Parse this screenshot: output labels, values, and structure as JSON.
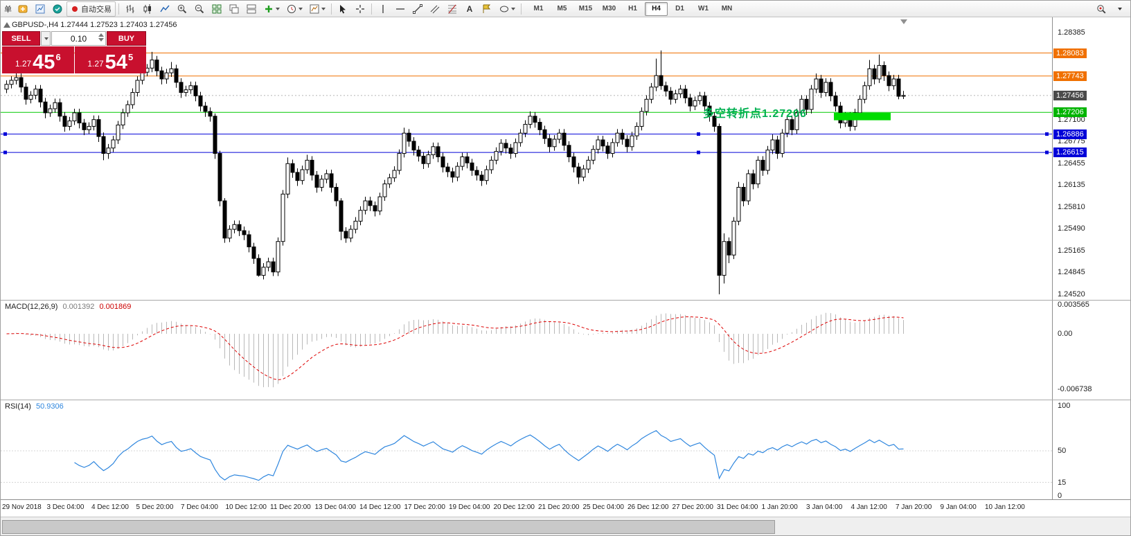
{
  "toolbar": {
    "order_label": "单",
    "autotrading_label": "自动交易",
    "icon_names": [
      "new-order",
      "charts",
      "market-watch",
      "autotrading",
      "bar-chart",
      "candlestick-chart",
      "line-chart",
      "zoom-in",
      "zoom-out",
      "tile-windows",
      "cascade-windows",
      "arrange-windows",
      "add-indicator",
      "periods",
      "templates",
      "cursor",
      "crosshair",
      "vertical-line",
      "horizontal-line",
      "trendline",
      "equidistant-channel",
      "fibonacci",
      "text",
      "label",
      "shapes",
      "search",
      "overflow-chevron"
    ],
    "timeframes": [
      "M1",
      "M5",
      "M15",
      "M30",
      "H1",
      "H4",
      "D1",
      "W1",
      "MN"
    ],
    "active_timeframe": "H4"
  },
  "chart_header": {
    "symbol_label": "GBPUSD-,H4 1.27444 1.27523 1.27403 1.27456"
  },
  "one_click": {
    "sell_label": "SELL",
    "buy_label": "BUY",
    "lot_size": "0.10",
    "sell_price_prefix": "1.27",
    "sell_price_big": "45",
    "sell_price_sup": "6",
    "buy_price_prefix": "1.27",
    "buy_price_big": "54",
    "buy_price_sup": "5",
    "button_color": "#c8102e"
  },
  "annotation": {
    "text": "多空转折点1.27206",
    "color": "#00b050"
  },
  "price_axis": {
    "plain_ticks": [
      {
        "label": "1.28385",
        "price": 1.28385
      },
      {
        "label": "1.27100",
        "price": 1.271
      },
      {
        "label": "1.26775",
        "price": 1.26775
      },
      {
        "label": "1.26455",
        "price": 1.26455
      },
      {
        "label": "1.26135",
        "price": 1.26135
      },
      {
        "label": "1.25810",
        "price": 1.2581
      },
      {
        "label": "1.25490",
        "price": 1.2549
      },
      {
        "label": "1.25165",
        "price": 1.25165
      },
      {
        "label": "1.24845",
        "price": 1.24845
      },
      {
        "label": "1.24520",
        "price": 1.2452
      }
    ],
    "badges": [
      {
        "label": "1.28083",
        "price": 1.28083,
        "color": "#f07000"
      },
      {
        "label": "1.27743",
        "price": 1.27743,
        "color": "#f07000"
      },
      {
        "label": "1.27456",
        "price": 1.27456,
        "color": "#4a4a4a"
      },
      {
        "label": "1.27206",
        "price": 1.27206,
        "color": "#00b400"
      },
      {
        "label": "1.26886",
        "price": 1.26886,
        "color": "#0000d8"
      },
      {
        "label": "1.26615",
        "price": 1.26615,
        "color": "#0000d8"
      }
    ]
  },
  "indicators": {
    "macd": {
      "name_label": "MACD(12,26,9)",
      "value_main": "0.001392",
      "value_signal": "0.001869",
      "axis_labels": [
        "0.003565",
        "0.00",
        "-0.006738"
      ],
      "params": {
        "fast": 12,
        "slow": 26,
        "signal": 9
      },
      "colors": {
        "histogram": "#b8b8b8",
        "signal": "#dd0000"
      }
    },
    "rsi": {
      "name_label": "RSI(14)",
      "value": "50.9306",
      "axis_labels": [
        "100",
        "50",
        "15",
        "0"
      ],
      "period": 14,
      "levels": [
        50,
        15
      ],
      "color": "#2e86de"
    }
  },
  "time_axis": {
    "labels": [
      "29 Nov 2018",
      "3 Dec 04:00",
      "4 Dec 12:00",
      "5 Dec 20:00",
      "7 Dec 04:00",
      "10 Dec 12:00",
      "11 Dec 20:00",
      "13 Dec 04:00",
      "14 Dec 12:00",
      "17 Dec 20:00",
      "19 Dec 04:00",
      "20 Dec 12:00",
      "21 Dec 20:00",
      "25 Dec 04:00",
      "26 Dec 12:00",
      "27 Dec 20:00",
      "31 Dec 04:00",
      "1 Jan 20:00",
      "3 Jan 04:00",
      "4 Jan 12:00",
      "7 Jan 20:00",
      "9 Jan 04:00",
      "10 Jan 12:00"
    ]
  },
  "scrollbar": {
    "thumb_start": 2,
    "thumb_width": 1116
  },
  "chart_data": {
    "type": "candlestick",
    "symbol": "GBPUSD-",
    "timeframe": "H4",
    "current_bid": 1.27456,
    "price_range": {
      "y_top": 1.2861,
      "y_bottom": 1.24438
    },
    "colors": {
      "bull": "#ffffff",
      "bear": "#000000",
      "outline": "#000000",
      "bid_line": "#b5b5b5"
    },
    "hlines": [
      {
        "price": 1.28083,
        "color": "#f07000",
        "handles": false
      },
      {
        "price": 1.27743,
        "color": "#f07000",
        "handles": false
      },
      {
        "price": 1.27206,
        "color": "#00c800",
        "handles": false
      },
      {
        "price": 1.26886,
        "color": "#0000d8",
        "handles": true
      },
      {
        "price": 1.26615,
        "color": "#0000d8",
        "handles": true
      }
    ],
    "rectangle": {
      "from_index": 171,
      "to_index": 182,
      "price_top": 1.272,
      "price_bottom": 1.2709,
      "color": "#00dc00"
    },
    "ohlc": [
      [
        1.2755,
        1.2768,
        1.2749,
        1.2762
      ],
      [
        1.2762,
        1.2774,
        1.2756,
        1.2768
      ],
      [
        1.2768,
        1.278,
        1.2762,
        1.2772
      ],
      [
        1.2772,
        1.2778,
        1.275,
        1.2758
      ],
      [
        1.2758,
        1.2764,
        1.2732,
        1.274
      ],
      [
        1.274,
        1.2752,
        1.2734,
        1.2746
      ],
      [
        1.2746,
        1.2761,
        1.274,
        1.2755
      ],
      [
        1.2755,
        1.2761,
        1.2728,
        1.2736
      ],
      [
        1.2736,
        1.2742,
        1.2712,
        1.272
      ],
      [
        1.272,
        1.2732,
        1.2714,
        1.2726
      ],
      [
        1.2726,
        1.2741,
        1.272,
        1.2735
      ],
      [
        1.2735,
        1.2741,
        1.2707,
        1.2715
      ],
      [
        1.2715,
        1.2721,
        1.2692,
        1.27
      ],
      [
        1.27,
        1.2714,
        1.2694,
        1.2708
      ],
      [
        1.2708,
        1.2726,
        1.2702,
        1.272
      ],
      [
        1.272,
        1.2726,
        1.2697,
        1.2705
      ],
      [
        1.2705,
        1.2711,
        1.2687,
        1.2695
      ],
      [
        1.2695,
        1.2706,
        1.2689,
        1.27
      ],
      [
        1.27,
        1.2716,
        1.2694,
        1.271
      ],
      [
        1.271,
        1.2716,
        1.2677,
        1.2685
      ],
      [
        1.2685,
        1.2691,
        1.265,
        1.266
      ],
      [
        1.266,
        1.2674,
        1.2652,
        1.2668
      ],
      [
        1.2668,
        1.2686,
        1.2662,
        1.268
      ],
      [
        1.268,
        1.2708,
        1.2674,
        1.2702
      ],
      [
        1.2702,
        1.2726,
        1.2696,
        1.272
      ],
      [
        1.272,
        1.2738,
        1.2714,
        1.2732
      ],
      [
        1.2732,
        1.2756,
        1.2726,
        1.275
      ],
      [
        1.275,
        1.2774,
        1.2744,
        1.2768
      ],
      [
        1.2768,
        1.2786,
        1.2762,
        1.278
      ],
      [
        1.278,
        1.2792,
        1.2774,
        1.2786
      ],
      [
        1.2786,
        1.281,
        1.278,
        1.2798
      ],
      [
        1.2798,
        1.2804,
        1.2774,
        1.2782
      ],
      [
        1.2782,
        1.2788,
        1.2762,
        1.277
      ],
      [
        1.277,
        1.2785,
        1.2763,
        1.2779
      ],
      [
        1.2779,
        1.2795,
        1.2773,
        1.2785
      ],
      [
        1.2785,
        1.2791,
        1.2757,
        1.2765
      ],
      [
        1.2765,
        1.2771,
        1.2742,
        1.275
      ],
      [
        1.275,
        1.276,
        1.2744,
        1.2754
      ],
      [
        1.2754,
        1.2766,
        1.2748,
        1.276
      ],
      [
        1.276,
        1.2766,
        1.2737,
        1.2745
      ],
      [
        1.2745,
        1.2751,
        1.2722,
        1.273
      ],
      [
        1.273,
        1.2736,
        1.2714,
        1.2722
      ],
      [
        1.2722,
        1.2728,
        1.2707,
        1.2715
      ],
      [
        1.2715,
        1.2719,
        1.2652,
        1.266
      ],
      [
        1.266,
        1.2664,
        1.2582,
        1.259
      ],
      [
        1.259,
        1.2594,
        1.2528,
        1.2535
      ],
      [
        1.2535,
        1.2554,
        1.2529,
        1.2548
      ],
      [
        1.2548,
        1.2561,
        1.2542,
        1.2555
      ],
      [
        1.2555,
        1.2561,
        1.2538,
        1.2546
      ],
      [
        1.2546,
        1.2552,
        1.2532,
        1.254
      ],
      [
        1.254,
        1.2546,
        1.2514,
        1.2522
      ],
      [
        1.2522,
        1.2528,
        1.2497,
        1.2505
      ],
      [
        1.2505,
        1.2511,
        1.2478,
        1.248
      ],
      [
        1.248,
        1.2498,
        1.2474,
        1.2492
      ],
      [
        1.2492,
        1.2506,
        1.2486,
        1.25
      ],
      [
        1.25,
        1.2506,
        1.2479,
        1.2485
      ],
      [
        1.2485,
        1.2536,
        1.2479,
        1.253
      ],
      [
        1.253,
        1.2606,
        1.2524,
        1.26
      ],
      [
        1.26,
        1.2654,
        1.2594,
        1.2645
      ],
      [
        1.2645,
        1.2651,
        1.2624,
        1.2632
      ],
      [
        1.2632,
        1.2638,
        1.2612,
        1.262
      ],
      [
        1.262,
        1.2642,
        1.2614,
        1.2636
      ],
      [
        1.2636,
        1.2658,
        1.263,
        1.265
      ],
      [
        1.265,
        1.2656,
        1.262,
        1.2628
      ],
      [
        1.2628,
        1.2634,
        1.2602,
        1.261
      ],
      [
        1.261,
        1.2628,
        1.2604,
        1.2622
      ],
      [
        1.2622,
        1.2636,
        1.2616,
        1.263
      ],
      [
        1.263,
        1.2636,
        1.2602,
        1.261
      ],
      [
        1.261,
        1.2616,
        1.2582,
        1.259
      ],
      [
        1.259,
        1.2594,
        1.2532,
        1.2545
      ],
      [
        1.2545,
        1.2551,
        1.2528,
        1.2535
      ],
      [
        1.2535,
        1.2554,
        1.2529,
        1.2548
      ],
      [
        1.2548,
        1.2566,
        1.2542,
        1.256
      ],
      [
        1.256,
        1.2582,
        1.2554,
        1.2576
      ],
      [
        1.2576,
        1.2596,
        1.257,
        1.259
      ],
      [
        1.259,
        1.2596,
        1.2575,
        1.2583
      ],
      [
        1.2583,
        1.2589,
        1.2567,
        1.2575
      ],
      [
        1.2575,
        1.2602,
        1.2569,
        1.2596
      ],
      [
        1.2596,
        1.2621,
        1.259,
        1.2615
      ],
      [
        1.2615,
        1.263,
        1.2609,
        1.2624
      ],
      [
        1.2624,
        1.2641,
        1.2618,
        1.2635
      ],
      [
        1.2635,
        1.2666,
        1.2629,
        1.266
      ],
      [
        1.266,
        1.2698,
        1.2654,
        1.269
      ],
      [
        1.269,
        1.2696,
        1.267,
        1.2678
      ],
      [
        1.2678,
        1.2684,
        1.2657,
        1.2665
      ],
      [
        1.2665,
        1.2671,
        1.2648,
        1.2656
      ],
      [
        1.2656,
        1.2662,
        1.2637,
        1.2645
      ],
      [
        1.2645,
        1.2664,
        1.2639,
        1.2658
      ],
      [
        1.2658,
        1.2676,
        1.2652,
        1.267
      ],
      [
        1.267,
        1.2676,
        1.2647,
        1.2655
      ],
      [
        1.2655,
        1.2661,
        1.2632,
        1.264
      ],
      [
        1.264,
        1.2646,
        1.2625,
        1.2633
      ],
      [
        1.2633,
        1.2639,
        1.2617,
        1.2625
      ],
      [
        1.2625,
        1.2647,
        1.2619,
        1.2641
      ],
      [
        1.2641,
        1.2661,
        1.2635,
        1.2655
      ],
      [
        1.2655,
        1.2661,
        1.2638,
        1.2646
      ],
      [
        1.2646,
        1.2652,
        1.2627,
        1.2635
      ],
      [
        1.2635,
        1.2641,
        1.262,
        1.2628
      ],
      [
        1.2628,
        1.2634,
        1.2612,
        1.262
      ],
      [
        1.262,
        1.2642,
        1.2614,
        1.2636
      ],
      [
        1.2636,
        1.2656,
        1.263,
        1.265
      ],
      [
        1.265,
        1.2669,
        1.2644,
        1.2663
      ],
      [
        1.2663,
        1.2681,
        1.2657,
        1.2675
      ],
      [
        1.2675,
        1.2681,
        1.266,
        1.2668
      ],
      [
        1.2668,
        1.2674,
        1.2652,
        1.266
      ],
      [
        1.266,
        1.2682,
        1.2654,
        1.2676
      ],
      [
        1.2676,
        1.2696,
        1.267,
        1.269
      ],
      [
        1.269,
        1.2709,
        1.2684,
        1.2703
      ],
      [
        1.2703,
        1.2722,
        1.2697,
        1.2715
      ],
      [
        1.2715,
        1.2721,
        1.2698,
        1.2706
      ],
      [
        1.2706,
        1.2712,
        1.2687,
        1.2695
      ],
      [
        1.2695,
        1.2701,
        1.2674,
        1.2682
      ],
      [
        1.2682,
        1.2688,
        1.2662,
        1.267
      ],
      [
        1.267,
        1.2687,
        1.2664,
        1.2681
      ],
      [
        1.2681,
        1.2696,
        1.2675,
        1.269
      ],
      [
        1.269,
        1.2696,
        1.2664,
        1.2672
      ],
      [
        1.2672,
        1.2678,
        1.2647,
        1.2655
      ],
      [
        1.2655,
        1.2661,
        1.2632,
        1.264
      ],
      [
        1.264,
        1.2646,
        1.2615,
        1.2625
      ],
      [
        1.2625,
        1.2643,
        1.2619,
        1.2637
      ],
      [
        1.2637,
        1.2656,
        1.2631,
        1.265
      ],
      [
        1.265,
        1.2672,
        1.2644,
        1.2666
      ],
      [
        1.2666,
        1.2686,
        1.266,
        1.268
      ],
      [
        1.268,
        1.2686,
        1.2663,
        1.2671
      ],
      [
        1.2671,
        1.2677,
        1.2652,
        1.266
      ],
      [
        1.266,
        1.2682,
        1.2654,
        1.2676
      ],
      [
        1.2676,
        1.2696,
        1.267,
        1.269
      ],
      [
        1.269,
        1.2696,
        1.2673,
        1.2681
      ],
      [
        1.2681,
        1.2687,
        1.2662,
        1.267
      ],
      [
        1.267,
        1.2692,
        1.2664,
        1.2686
      ],
      [
        1.2686,
        1.2706,
        1.268,
        1.27
      ],
      [
        1.27,
        1.2728,
        1.2694,
        1.2722
      ],
      [
        1.2722,
        1.2746,
        1.2716,
        1.274
      ],
      [
        1.274,
        1.2764,
        1.2734,
        1.2758
      ],
      [
        1.2758,
        1.28,
        1.2752,
        1.2775
      ],
      [
        1.2775,
        1.2812,
        1.2754,
        1.276
      ],
      [
        1.276,
        1.2766,
        1.2744,
        1.2752
      ],
      [
        1.2752,
        1.2758,
        1.2732,
        1.274
      ],
      [
        1.274,
        1.2754,
        1.2734,
        1.2748
      ],
      [
        1.2748,
        1.2761,
        1.2742,
        1.2755
      ],
      [
        1.2755,
        1.2761,
        1.2734,
        1.2742
      ],
      [
        1.2742,
        1.2748,
        1.2722,
        1.273
      ],
      [
        1.273,
        1.2744,
        1.2724,
        1.2738
      ],
      [
        1.2738,
        1.2751,
        1.2732,
        1.2745
      ],
      [
        1.2745,
        1.2751,
        1.2722,
        1.273
      ],
      [
        1.273,
        1.2736,
        1.2707,
        1.2715
      ],
      [
        1.2715,
        1.2721,
        1.2692,
        1.27
      ],
      [
        1.27,
        1.2704,
        1.2452,
        1.248
      ],
      [
        1.248,
        1.2542,
        1.2468,
        1.253
      ],
      [
        1.253,
        1.2536,
        1.2498,
        1.251
      ],
      [
        1.251,
        1.2566,
        1.2504,
        1.256
      ],
      [
        1.256,
        1.2618,
        1.2554,
        1.261
      ],
      [
        1.261,
        1.2616,
        1.2582,
        1.259
      ],
      [
        1.259,
        1.2636,
        1.2584,
        1.263
      ],
      [
        1.263,
        1.2636,
        1.2607,
        1.2615
      ],
      [
        1.2615,
        1.2656,
        1.2609,
        1.265
      ],
      [
        1.265,
        1.2656,
        1.2627,
        1.2635
      ],
      [
        1.2635,
        1.2671,
        1.2629,
        1.2665
      ],
      [
        1.2665,
        1.2688,
        1.2659,
        1.268
      ],
      [
        1.268,
        1.2686,
        1.2652,
        1.266
      ],
      [
        1.266,
        1.2696,
        1.2654,
        1.269
      ],
      [
        1.269,
        1.2716,
        1.2684,
        1.271
      ],
      [
        1.271,
        1.2716,
        1.2687,
        1.2695
      ],
      [
        1.2695,
        1.2726,
        1.2689,
        1.272
      ],
      [
        1.272,
        1.2746,
        1.2714,
        1.274
      ],
      [
        1.274,
        1.2746,
        1.2717,
        1.2725
      ],
      [
        1.2725,
        1.2761,
        1.2719,
        1.2755
      ],
      [
        1.2755,
        1.2778,
        1.2749,
        1.277
      ],
      [
        1.277,
        1.2776,
        1.2742,
        1.275
      ],
      [
        1.275,
        1.2771,
        1.2744,
        1.2765
      ],
      [
        1.2765,
        1.2771,
        1.2737,
        1.2745
      ],
      [
        1.2745,
        1.2751,
        1.2722,
        1.273
      ],
      [
        1.273,
        1.2736,
        1.2697,
        1.2705
      ],
      [
        1.2705,
        1.2721,
        1.2699,
        1.2715
      ],
      [
        1.2715,
        1.2721,
        1.2693,
        1.27
      ],
      [
        1.27,
        1.2726,
        1.2694,
        1.272
      ],
      [
        1.272,
        1.2746,
        1.2714,
        1.274
      ],
      [
        1.274,
        1.2766,
        1.2734,
        1.276
      ],
      [
        1.276,
        1.2798,
        1.2754,
        1.2785
      ],
      [
        1.2785,
        1.2791,
        1.2762,
        1.277
      ],
      [
        1.277,
        1.2806,
        1.2764,
        1.279
      ],
      [
        1.279,
        1.2796,
        1.2767,
        1.2775
      ],
      [
        1.2775,
        1.2781,
        1.2752,
        1.276
      ],
      [
        1.276,
        1.2776,
        1.2754,
        1.277
      ],
      [
        1.277,
        1.2776,
        1.274,
        1.27444
      ],
      [
        1.27444,
        1.27523,
        1.27403,
        1.27456
      ]
    ]
  }
}
